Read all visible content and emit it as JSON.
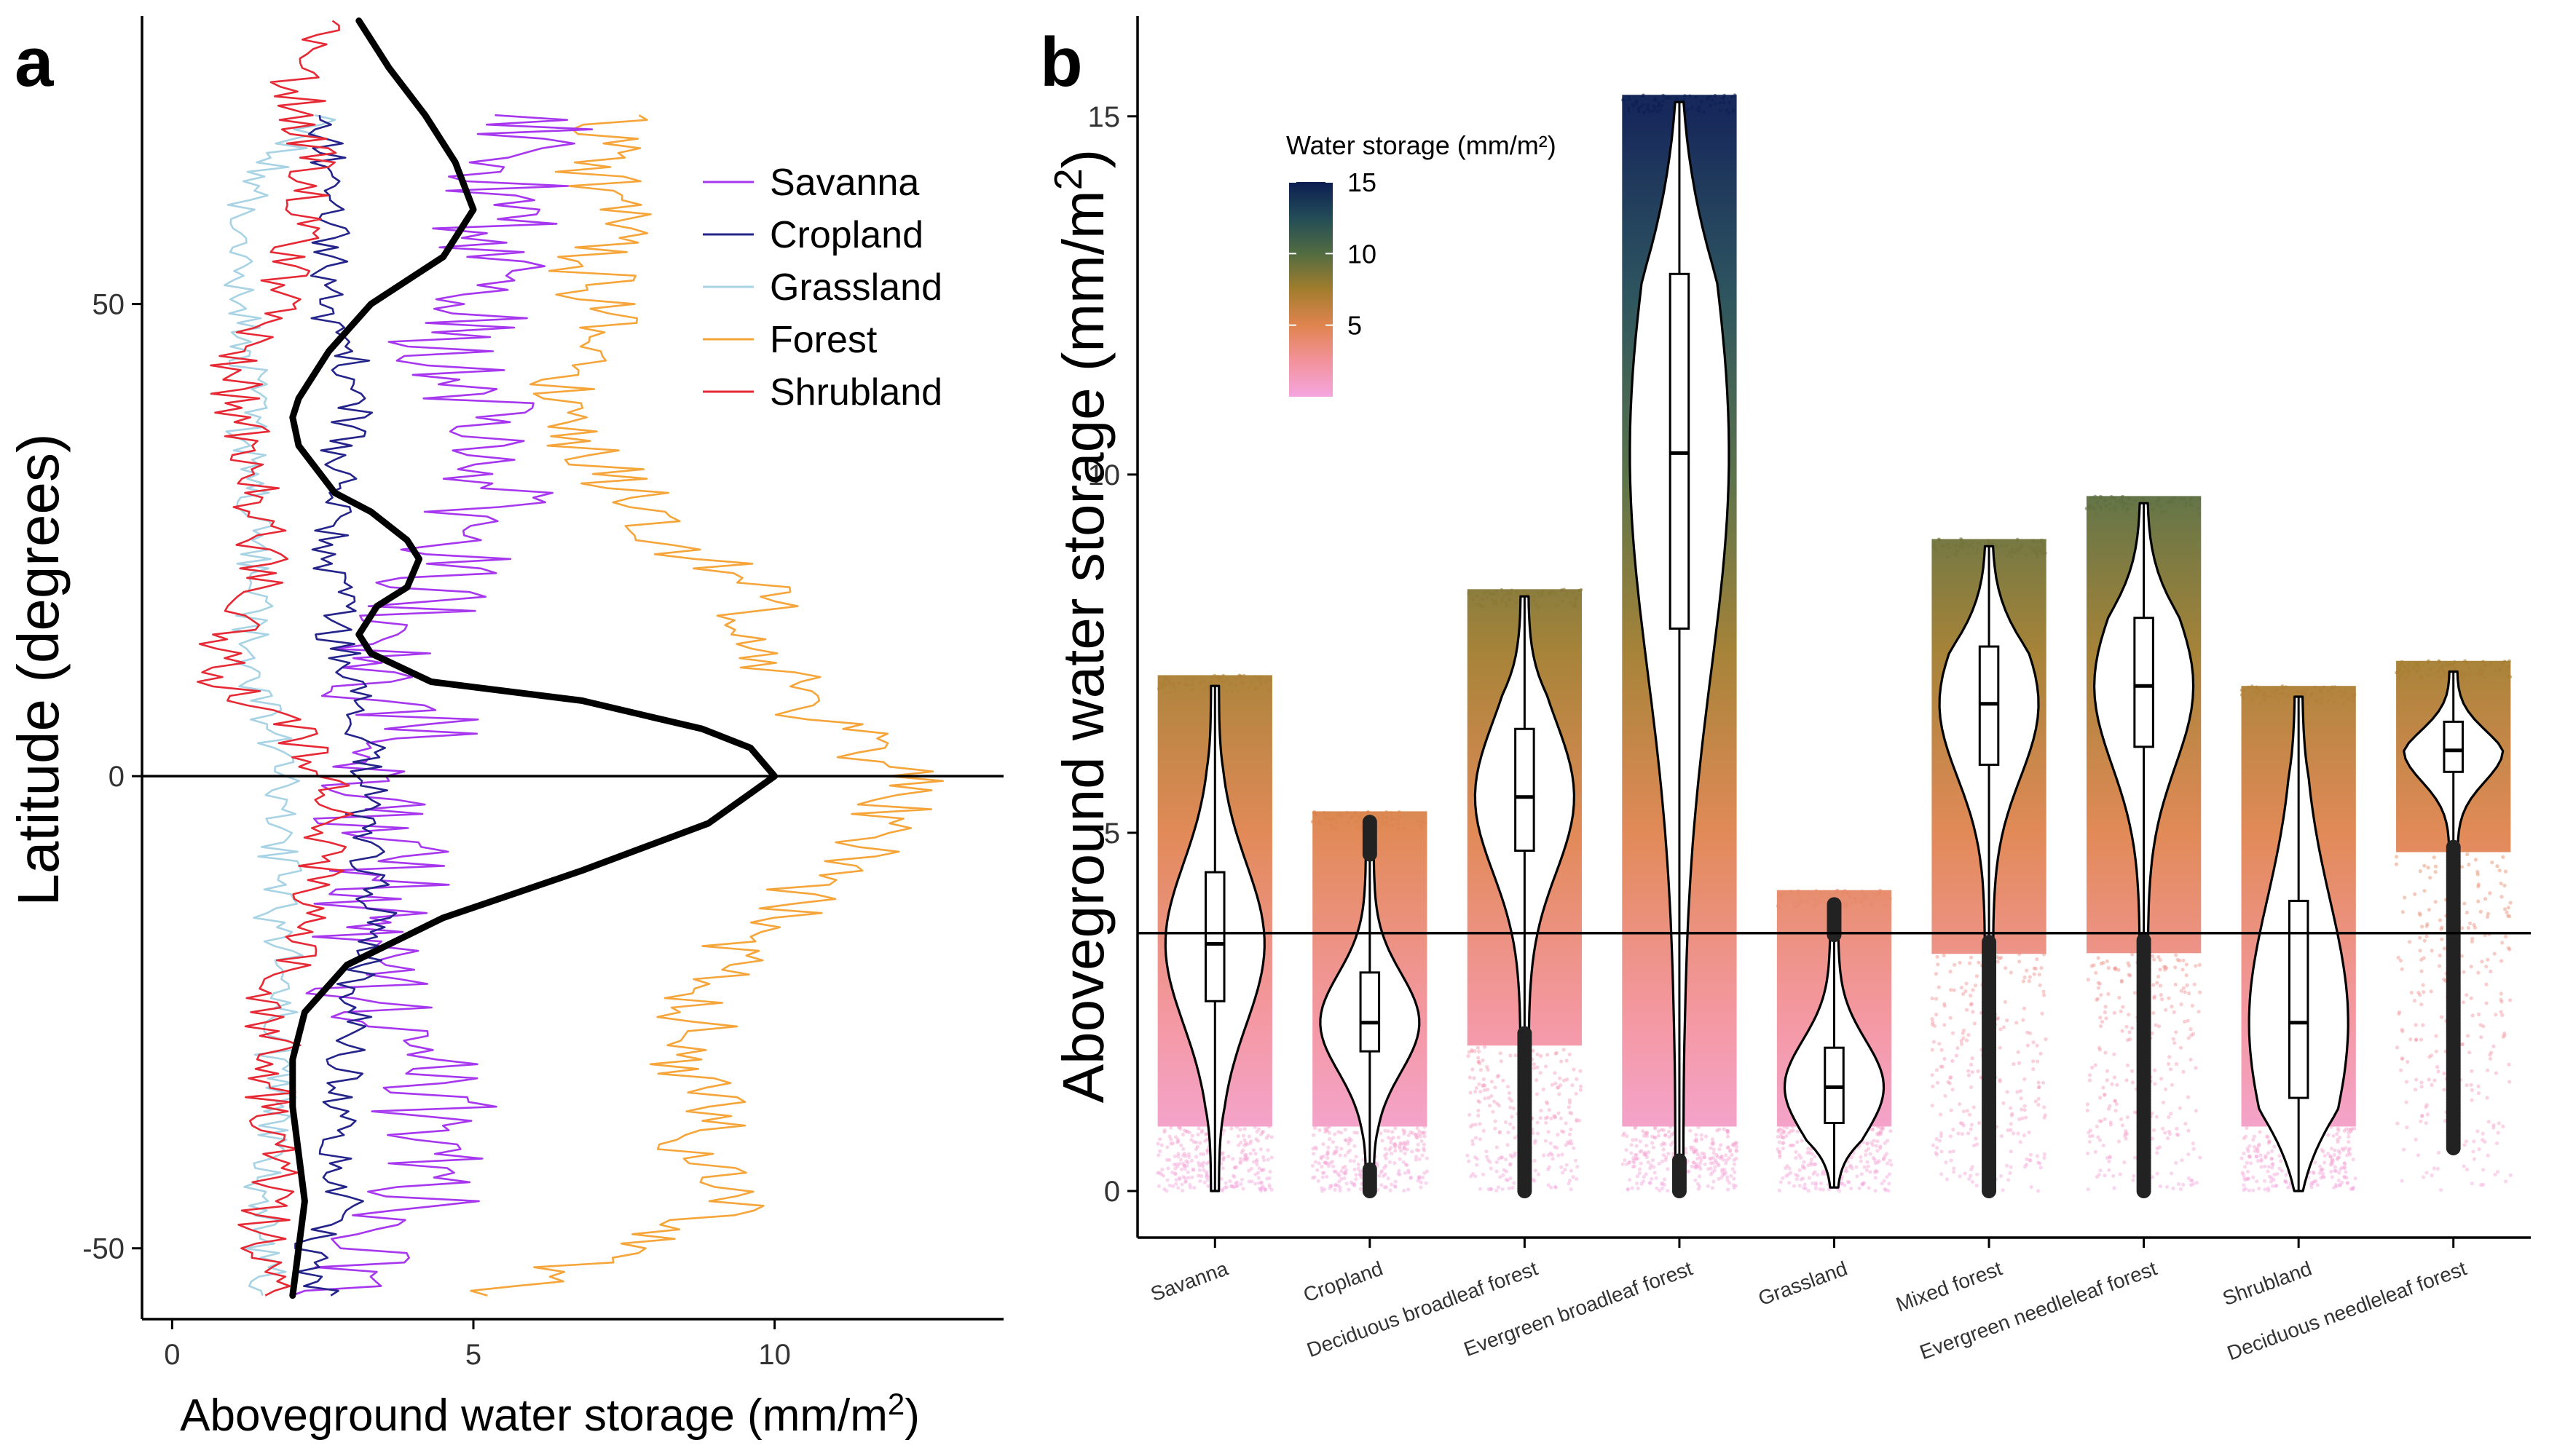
{
  "panels": {
    "a_label": "a",
    "b_label": "b"
  },
  "colors": {
    "savanna": "#a637ee",
    "cropland": "#24248a",
    "grassland": "#a7d3e4",
    "forest": "#f5a53a",
    "shrubland": "#e62a35",
    "mean": "#000000"
  },
  "chart_data": [
    {
      "type": "line",
      "panel": "a",
      "xlabel": "Aboveground water storage (mm/m²)",
      "ylabel": "Latitude (degrees)",
      "xlim": [
        -0.5,
        13.8
      ],
      "ylim": [
        -57.5,
        80.5
      ],
      "xticks": [
        0,
        5,
        10
      ],
      "xtick_labels": [
        "0",
        "5",
        "10"
      ],
      "yticks": [
        -50,
        0,
        50
      ],
      "ytick_labels": [
        "-50",
        "0",
        "50"
      ],
      "reference_line": {
        "y": 0
      },
      "legend": {
        "position": "top-right",
        "entries": [
          "Savanna",
          "Cropland",
          "Grassland",
          "Forest",
          "Shrubland"
        ]
      },
      "series": [
        {
          "name": "Savanna",
          "color": "#a637ee",
          "y": [
            -55,
            -50,
            -45,
            -40,
            -35,
            -30,
            -25,
            -20,
            -15,
            -10,
            -5,
            0,
            5,
            10,
            15,
            20,
            25,
            30,
            35,
            40,
            45,
            50,
            55,
            60,
            65,
            70
          ],
          "x": [
            2.5,
            3.4,
            4.2,
            4.5,
            4.3,
            4.0,
            3.6,
            2.9,
            3.3,
            3.6,
            3.4,
            3.4,
            4.4,
            3.2,
            4.0,
            4.3,
            4.8,
            5.5,
            4.8,
            5.0,
            4.6,
            5.0,
            5.3,
            5.4,
            5.8,
            6.4
          ]
        },
        {
          "name": "Cropland",
          "color": "#24248a",
          "y": [
            -55,
            -50,
            -45,
            -40,
            -35,
            -30,
            -25,
            -20,
            -15,
            -10,
            -5,
            0,
            5,
            10,
            15,
            20,
            25,
            30,
            35,
            40,
            45,
            50,
            55,
            60,
            65,
            70
          ],
          "x": [
            2.5,
            2.3,
            2.9,
            2.8,
            2.8,
            2.9,
            3.0,
            3.1,
            3.5,
            3.2,
            3.2,
            3.3,
            3.2,
            3.1,
            2.7,
            2.7,
            2.6,
            2.7,
            2.8,
            3.1,
            2.9,
            2.5,
            2.7,
            2.6,
            2.6,
            2.4
          ]
        },
        {
          "name": "Grassland",
          "color": "#a7d3e4",
          "y": [
            -55,
            -50,
            -45,
            -40,
            -35,
            -30,
            -25,
            -20,
            -15,
            -10,
            -5,
            0,
            5,
            10,
            15,
            20,
            25,
            30,
            35,
            40,
            45,
            50,
            55,
            60,
            65,
            70
          ],
          "x": [
            1.6,
            1.5,
            1.5,
            1.6,
            1.8,
            1.7,
            1.8,
            1.9,
            1.7,
            1.8,
            1.7,
            1.8,
            1.6,
            1.4,
            1.3,
            1.4,
            1.3,
            1.4,
            1.2,
            1.3,
            1.3,
            1.2,
            1.2,
            1.1,
            1.7,
            2.6
          ]
        },
        {
          "name": "Forest",
          "color": "#f5a53a",
          "y": [
            -55,
            -50,
            -45,
            -40,
            -35,
            -30,
            -25,
            -20,
            -15,
            -10,
            -5,
            0,
            5,
            10,
            15,
            20,
            25,
            30,
            35,
            40,
            45,
            50,
            55,
            60,
            65,
            70
          ],
          "x": [
            5.0,
            7.5,
            9.5,
            8.5,
            9.0,
            8.5,
            8.8,
            9.2,
            10.0,
            11.0,
            11.8,
            12.3,
            11.0,
            10.2,
            9.5,
            9.8,
            8.3,
            7.6,
            6.6,
            6.5,
            7.0,
            7.1,
            6.9,
            7.4,
            7.0,
            7.3
          ]
        },
        {
          "name": "Shrubland",
          "color": "#e62a35",
          "y": [
            -55,
            -50,
            -45,
            -40,
            -35,
            -30,
            -25,
            -20,
            -15,
            -10,
            -5,
            0,
            5,
            10,
            15,
            20,
            25,
            30,
            35,
            40,
            45,
            50,
            55,
            60,
            65,
            70,
            75,
            80
          ],
          "x": [
            1.7,
            1.5,
            1.6,
            1.8,
            1.6,
            1.8,
            1.5,
            1.9,
            2.2,
            2.5,
            2.6,
            2.5,
            2.0,
            0.8,
            0.9,
            1.6,
            1.5,
            1.4,
            1.3,
            1.1,
            1.0,
            1.9,
            1.9,
            2.3,
            2.4,
            2.2,
            2.0,
            3.0
          ]
        },
        {
          "name": "",
          "color": "#000000",
          "y": [
            -55,
            -50,
            -45,
            -40,
            -35,
            -30,
            -25,
            -20,
            -15,
            -10,
            -5,
            0,
            3,
            5,
            8,
            10,
            13,
            15,
            18,
            20,
            23,
            25,
            28,
            30,
            35,
            38,
            40,
            45,
            50,
            55,
            60,
            65,
            70,
            75,
            80
          ],
          "x": [
            2.0,
            2.1,
            2.2,
            2.1,
            2.0,
            2.0,
            2.2,
            2.9,
            4.5,
            6.8,
            8.9,
            10.0,
            9.6,
            8.8,
            6.8,
            4.3,
            3.3,
            3.1,
            3.4,
            3.9,
            4.1,
            3.9,
            3.3,
            2.7,
            2.1,
            2.0,
            2.1,
            2.6,
            3.3,
            4.5,
            5.0,
            4.7,
            4.2,
            3.6,
            3.1
          ]
        }
      ]
    },
    {
      "type": "violin",
      "panel": "b",
      "ylabel": "Aboveground water storage (mm/m²)",
      "xlabel": "",
      "ylim": [
        -0.65,
        16.4
      ],
      "yticks": [
        0,
        5,
        10,
        15
      ],
      "ytick_labels": [
        "0",
        "5",
        "10",
        "15"
      ],
      "reference_line": {
        "y": 3.6
      },
      "colorbar": {
        "title": "Water storage (mm/m²)",
        "ticks": [
          5,
          10,
          15
        ],
        "tick_labels": [
          "5",
          "10",
          "15"
        ],
        "range": [
          0,
          15
        ],
        "colors": [
          "#f4a6e0",
          "#f3929b",
          "#e0844f",
          "#a27d2e",
          "#526c41",
          "#234c57",
          "#0b1e52"
        ],
        "position": "top-left"
      },
      "categories": [
        "Savanna",
        "Cropland",
        "Deciduous broadleaf forest",
        "Evergreen broadleaf forest",
        "Grassland",
        "Mixed forest",
        "Evergreen needleleaf forest",
        "Shrubland",
        "Deciduous needleleaf forest"
      ],
      "groups": [
        {
          "name": "Savanna",
          "min": 0.0,
          "q1": 2.65,
          "median": 3.45,
          "q3": 4.45,
          "max": 7.05,
          "points_max": 7.2
        },
        {
          "name": "Cropland",
          "min": 0.0,
          "q1": 1.95,
          "median": 2.35,
          "q3": 3.05,
          "max": 5.15,
          "points_max": 5.3
        },
        {
          "name": "Deciduous broadleaf forest",
          "min": 0.0,
          "q1": 4.75,
          "median": 5.5,
          "q3": 6.45,
          "max": 8.3,
          "points_max": 8.4
        },
        {
          "name": "Evergreen broadleaf forest",
          "min": 0.0,
          "q1": 7.85,
          "median": 10.3,
          "q3": 12.8,
          "max": 15.2,
          "points_max": 15.3
        },
        {
          "name": "Grassland",
          "min": 0.05,
          "q1": 0.95,
          "median": 1.45,
          "q3": 2.0,
          "max": 4.0,
          "points_max": 4.2
        },
        {
          "name": "Mixed forest",
          "min": 0.0,
          "q1": 5.95,
          "median": 6.8,
          "q3": 7.6,
          "max": 9.0,
          "points_max": 9.1
        },
        {
          "name": "Evergreen needleleaf forest",
          "min": 0.0,
          "q1": 6.2,
          "median": 7.05,
          "q3": 8.0,
          "max": 9.6,
          "points_max": 9.7
        },
        {
          "name": "Shrubland",
          "min": 0.0,
          "q1": 1.3,
          "median": 2.35,
          "q3": 4.05,
          "max": 6.9,
          "points_max": 7.05
        },
        {
          "name": "Deciduous needleleaf forest",
          "min": 0.6,
          "q1": 5.85,
          "median": 6.15,
          "q3": 6.55,
          "max": 7.25,
          "points_max": 7.4
        }
      ]
    }
  ]
}
